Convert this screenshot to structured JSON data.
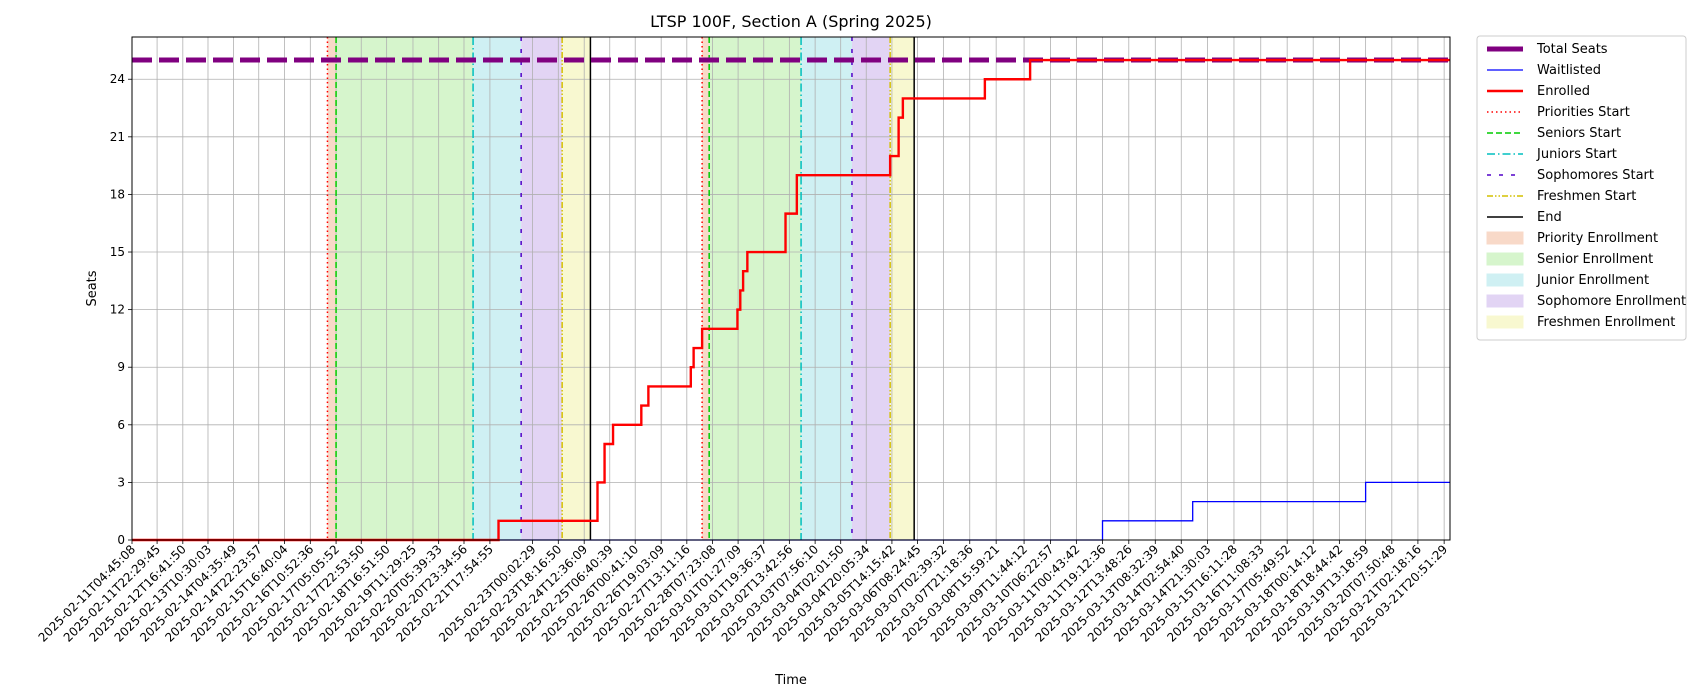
{
  "chart_data": {
    "type": "line",
    "title": "LTSP 100F, Section A (Spring 2025)",
    "xlabel": "Time",
    "ylabel": "Seats",
    "xlim": [
      "2025-02-11T04:45:08",
      "2025-03-22T01:00:00"
    ],
    "ylim": [
      0,
      26.2
    ],
    "yticks": [
      0,
      3,
      6,
      9,
      12,
      15,
      18,
      21,
      24
    ],
    "grid": true,
    "legend_position": "outside-right",
    "x_tick_labels": [
      "2025-02-11T04:45:08",
      "2025-02-11T22:29:45",
      "2025-02-12T16:41:50",
      "2025-02-13T10:30:03",
      "2025-02-14T04:35:49",
      "2025-02-14T22:23:57",
      "2025-02-15T16:40:04",
      "2025-02-16T10:52:36",
      "2025-02-17T05:05:52",
      "2025-02-17T22:53:50",
      "2025-02-18T16:51:50",
      "2025-02-19T11:29:25",
      "2025-02-20T05:39:33",
      "2025-02-20T23:34:56",
      "2025-02-21T17:54:55",
      "2025-02-23T00:02:29",
      "2025-02-23T18:16:50",
      "2025-02-24T12:36:09",
      "2025-02-25T06:40:39",
      "2025-02-26T00:41:10",
      "2025-02-26T19:03:09",
      "2025-02-27T13:11:16",
      "2025-02-28T07:23:08",
      "2025-03-01T01:27:09",
      "2025-03-01T19:36:37",
      "2025-03-02T13:42:56",
      "2025-03-03T07:56:10",
      "2025-03-04T02:01:50",
      "2025-03-04T20:05:34",
      "2025-03-05T14:15:42",
      "2025-03-06T08:24:45",
      "2025-03-07T02:39:32",
      "2025-03-07T21:18:36",
      "2025-03-08T15:59:21",
      "2025-03-09T11:44:12",
      "2025-03-10T06:22:57",
      "2025-03-11T00:43:42",
      "2025-03-11T19:12:36",
      "2025-03-12T13:48:26",
      "2025-03-13T08:32:39",
      "2025-03-14T02:54:40",
      "2025-03-14T21:30:03",
      "2025-03-15T16:11:28",
      "2025-03-16T11:08:33",
      "2025-03-17T05:49:52",
      "2025-03-18T00:14:12",
      "2025-03-18T18:44:42",
      "2025-03-19T13:18:59",
      "2025-03-20T07:50:48",
      "2025-03-21T02:18:16",
      "2025-03-21T20:51:29"
    ],
    "series": [
      {
        "name": "Total Seats",
        "color": "#800080",
        "style": "thick-dashed",
        "points": [
          [
            "2025-02-11T04:45:08",
            25
          ],
          [
            "2025-03-22T01:00:00",
            25
          ]
        ]
      },
      {
        "name": "Waitlisted",
        "color": "#0000ff",
        "style": "step",
        "points": [
          [
            "2025-02-11T04:45:08",
            0
          ],
          [
            "2025-03-11T19:12:36",
            0
          ],
          [
            "2025-03-11T19:12:36",
            1
          ],
          [
            "2025-03-14T11:00:00",
            1
          ],
          [
            "2025-03-14T11:00:00",
            2
          ],
          [
            "2025-03-19T13:18:59",
            2
          ],
          [
            "2025-03-19T13:18:59",
            3
          ],
          [
            "2025-03-22T01:00:00",
            3
          ]
        ]
      },
      {
        "name": "Enrolled",
        "color": "#ff0000",
        "style": "step",
        "points": [
          [
            "2025-02-11T04:45:08",
            0
          ],
          [
            "2025-02-22T00:00:00",
            0
          ],
          [
            "2025-02-22T00:00:00",
            1
          ],
          [
            "2025-02-24T22:00:00",
            1
          ],
          [
            "2025-02-24T22:00:00",
            3
          ],
          [
            "2025-02-25T03:00:00",
            3
          ],
          [
            "2025-02-25T03:00:00",
            5
          ],
          [
            "2025-02-25T09:00:00",
            5
          ],
          [
            "2025-02-25T09:00:00",
            6
          ],
          [
            "2025-02-26T05:00:00",
            6
          ],
          [
            "2025-02-26T05:00:00",
            7
          ],
          [
            "2025-02-26T10:00:00",
            7
          ],
          [
            "2025-02-26T10:00:00",
            8
          ],
          [
            "2025-02-27T16:00:00",
            8
          ],
          [
            "2025-02-27T16:00:00",
            9
          ],
          [
            "2025-02-27T18:00:00",
            9
          ],
          [
            "2025-02-27T18:00:00",
            10
          ],
          [
            "2025-02-28T00:00:00",
            10
          ],
          [
            "2025-02-28T00:00:00",
            11
          ],
          [
            "2025-03-01T01:00:00",
            11
          ],
          [
            "2025-03-01T01:00:00",
            12
          ],
          [
            "2025-03-01T03:00:00",
            12
          ],
          [
            "2025-03-01T03:00:00",
            13
          ],
          [
            "2025-03-01T05:00:00",
            13
          ],
          [
            "2025-03-01T05:00:00",
            14
          ],
          [
            "2025-03-01T08:00:00",
            14
          ],
          [
            "2025-03-01T08:00:00",
            15
          ],
          [
            "2025-03-02T11:00:00",
            15
          ],
          [
            "2025-03-02T11:00:00",
            17
          ],
          [
            "2025-03-02T19:00:00",
            17
          ],
          [
            "2025-03-02T19:00:00",
            19
          ],
          [
            "2025-03-05T13:00:00",
            19
          ],
          [
            "2025-03-05T13:00:00",
            20
          ],
          [
            "2025-03-05T19:00:00",
            20
          ],
          [
            "2025-03-05T19:00:00",
            22
          ],
          [
            "2025-03-05T22:00:00",
            22
          ],
          [
            "2025-03-05T22:00:00",
            23
          ],
          [
            "2025-03-08T08:00:00",
            23
          ],
          [
            "2025-03-08T08:00:00",
            24
          ],
          [
            "2025-03-09T16:00:00",
            24
          ],
          [
            "2025-03-09T16:00:00",
            25
          ],
          [
            "2025-03-22T01:00:00",
            25
          ]
        ]
      }
    ],
    "vlines": [
      {
        "name": "Priorities Start",
        "color": "#ff0000",
        "dash": "1.5,3",
        "x": [
          "2025-02-16T23:00:00",
          "2025-02-28T00:00:00"
        ]
      },
      {
        "name": "Seniors Start",
        "color": "#00cc00",
        "dash": "6,3",
        "x": [
          "2025-02-17T05:05:52",
          "2025-02-28T05:00:00"
        ]
      },
      {
        "name": "Juniors Start",
        "color": "#00bfbf",
        "dash": "8,3,1.5,3",
        "x": [
          "2025-02-21T06:00:00",
          "2025-03-02T22:00:00"
        ]
      },
      {
        "name": "Sophomores Start",
        "color": "#5000c8",
        "dash": "4,8",
        "x": [
          "2025-02-22T16:00:00",
          "2025-03-04T10:00:00"
        ]
      },
      {
        "name": "Freshmen Start",
        "color": "#d4c000",
        "dash": "6,2,1.5,2,1.5,2",
        "x": [
          "2025-02-23T21:00:00",
          "2025-03-05T13:00:00"
        ]
      },
      {
        "name": "End",
        "color": "#000000",
        "dash": "",
        "x": [
          "2025-02-24T17:00:00",
          "2025-03-06T06:00:00"
        ]
      }
    ],
    "bands": [
      {
        "name": "Priority Enrollment",
        "color": "#f8d9c8",
        "ranges": [
          [
            "2025-02-16T23:00:00",
            "2025-02-17T05:05:52"
          ],
          [
            "2025-02-28T00:00:00",
            "2025-02-28T05:00:00"
          ]
        ]
      },
      {
        "name": "Senior Enrollment",
        "color": "#d6f5cc",
        "ranges": [
          [
            "2025-02-17T05:05:52",
            "2025-02-21T06:00:00"
          ],
          [
            "2025-02-28T05:00:00",
            "2025-03-02T22:00:00"
          ]
        ]
      },
      {
        "name": "Junior Enrollment",
        "color": "#cff0f3",
        "ranges": [
          [
            "2025-02-21T06:00:00",
            "2025-02-22T16:00:00"
          ],
          [
            "2025-03-02T22:00:00",
            "2025-03-04T10:00:00"
          ]
        ]
      },
      {
        "name": "Sophomore Enrollment",
        "color": "#e2d4f4",
        "ranges": [
          [
            "2025-02-22T16:00:00",
            "2025-02-23T21:00:00"
          ],
          [
            "2025-03-04T10:00:00",
            "2025-03-05T13:00:00"
          ]
        ]
      },
      {
        "name": "Freshmen Enrollment",
        "color": "#f8f8d0",
        "ranges": [
          [
            "2025-02-23T21:00:00",
            "2025-02-24T17:00:00"
          ],
          [
            "2025-03-05T13:00:00",
            "2025-03-06T06:00:00"
          ]
        ]
      }
    ]
  }
}
